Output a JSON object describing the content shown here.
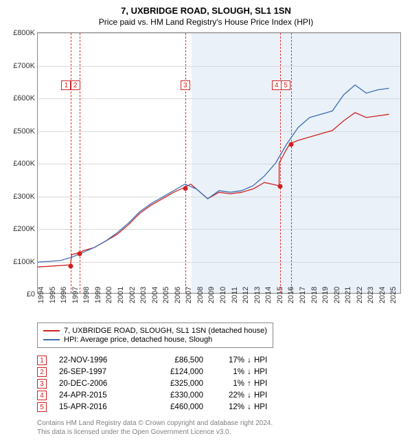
{
  "title": "7, UXBRIDGE ROAD, SLOUGH, SL1 1SN",
  "subtitle": "Price paid vs. HM Land Registry's House Price Index (HPI)",
  "chart": {
    "type": "line",
    "xlim": [
      1994,
      2026
    ],
    "ylim": [
      0,
      800000
    ],
    "ytick_step": 100000,
    "ytick_labels": [
      "£0",
      "£100K",
      "£200K",
      "£300K",
      "£400K",
      "£500K",
      "£600K",
      "£700K",
      "£800K"
    ],
    "xticks": [
      1994,
      1995,
      1996,
      1997,
      1998,
      1999,
      2000,
      2001,
      2002,
      2003,
      2004,
      2005,
      2006,
      2007,
      2008,
      2009,
      2010,
      2011,
      2012,
      2013,
      2014,
      2015,
      2016,
      2017,
      2018,
      2019,
      2020,
      2021,
      2022,
      2023,
      2024,
      2025
    ],
    "shade_region": {
      "from": 2007.5,
      "to": 2026,
      "color": "#eaf1f8"
    },
    "grid_color": "#d9d9d9",
    "background_color": "#ffffff",
    "series": [
      {
        "name": "price_paid",
        "label": "7, UXBRIDGE ROAD, SLOUGH, SL1 1SN (detached house)",
        "color": "#d02020",
        "line_width": 1.3,
        "points": [
          [
            1994,
            80000
          ],
          [
            1996.9,
            86500
          ],
          [
            1996.9,
            90000
          ],
          [
            1997.0,
            118000
          ],
          [
            1997.7,
            124000
          ],
          [
            1998,
            130000
          ],
          [
            1999,
            140000
          ],
          [
            2000,
            160000
          ],
          [
            2001,
            180000
          ],
          [
            2002,
            210000
          ],
          [
            2003,
            245000
          ],
          [
            2004,
            270000
          ],
          [
            2005,
            290000
          ],
          [
            2006,
            310000
          ],
          [
            2006.97,
            325000
          ],
          [
            2007.5,
            335000
          ],
          [
            2008,
            320000
          ],
          [
            2009,
            290000
          ],
          [
            2010,
            310000
          ],
          [
            2011,
            305000
          ],
          [
            2012,
            310000
          ],
          [
            2013,
            320000
          ],
          [
            2014,
            340000
          ],
          [
            2015.3,
            330000
          ],
          [
            2015.31,
            400000
          ],
          [
            2016.0,
            445000
          ],
          [
            2016.3,
            460000
          ],
          [
            2017,
            470000
          ],
          [
            2018,
            480000
          ],
          [
            2019,
            490000
          ],
          [
            2020,
            500000
          ],
          [
            2021,
            530000
          ],
          [
            2022,
            555000
          ],
          [
            2023,
            540000
          ],
          [
            2024,
            545000
          ],
          [
            2025,
            550000
          ]
        ]
      },
      {
        "name": "hpi",
        "label": "HPI: Average price, detached house, Slough",
        "color": "#3b6db5",
        "line_width": 1.3,
        "points": [
          [
            1994,
            95000
          ],
          [
            1995,
            97000
          ],
          [
            1996,
            100000
          ],
          [
            1997,
            110000
          ],
          [
            1998,
            125000
          ],
          [
            1999,
            140000
          ],
          [
            2000,
            160000
          ],
          [
            2001,
            185000
          ],
          [
            2002,
            215000
          ],
          [
            2003,
            250000
          ],
          [
            2004,
            275000
          ],
          [
            2005,
            295000
          ],
          [
            2006,
            315000
          ],
          [
            2007,
            335000
          ],
          [
            2008,
            320000
          ],
          [
            2009,
            290000
          ],
          [
            2010,
            315000
          ],
          [
            2011,
            310000
          ],
          [
            2012,
            315000
          ],
          [
            2013,
            330000
          ],
          [
            2014,
            360000
          ],
          [
            2015,
            400000
          ],
          [
            2016,
            460000
          ],
          [
            2017,
            510000
          ],
          [
            2018,
            540000
          ],
          [
            2019,
            550000
          ],
          [
            2020,
            560000
          ],
          [
            2021,
            610000
          ],
          [
            2022,
            640000
          ],
          [
            2023,
            615000
          ],
          [
            2024,
            625000
          ],
          [
            2025,
            630000
          ]
        ]
      }
    ],
    "markers": [
      {
        "n": "1",
        "x": 1996.5,
        "y_label": 640000,
        "sale": {
          "x": 1996.9,
          "y": 86500
        }
      },
      {
        "n": "2",
        "x": 1997.3,
        "y_label": 640000,
        "sale": {
          "x": 1997.7,
          "y": 124000
        }
      },
      {
        "n": "3",
        "x": 2006.97,
        "y_label": 640000,
        "sale": {
          "x": 2006.97,
          "y": 325000
        }
      },
      {
        "n": "4",
        "x": 2015.0,
        "y_label": 640000,
        "sale": {
          "x": 2015.3,
          "y": 330000
        }
      },
      {
        "n": "5",
        "x": 2015.8,
        "y_label": 640000,
        "sale": {
          "x": 2016.3,
          "y": 460000
        }
      }
    ]
  },
  "legend": {
    "items": [
      {
        "color": "#d02020",
        "label": "7, UXBRIDGE ROAD, SLOUGH, SL1 1SN (detached house)"
      },
      {
        "color": "#3b6db5",
        "label": "HPI: Average price, detached house, Slough"
      }
    ]
  },
  "events": [
    {
      "n": "1",
      "date": "22-NOV-1996",
      "price": "£86,500",
      "pct": "17%",
      "arrow": "↓",
      "suffix": "HPI"
    },
    {
      "n": "2",
      "date": "26-SEP-1997",
      "price": "£124,000",
      "pct": "1%",
      "arrow": "↓",
      "suffix": "HPI"
    },
    {
      "n": "3",
      "date": "20-DEC-2006",
      "price": "£325,000",
      "pct": "1%",
      "arrow": "↑",
      "suffix": "HPI"
    },
    {
      "n": "4",
      "date": "24-APR-2015",
      "price": "£330,000",
      "pct": "22%",
      "arrow": "↓",
      "suffix": "HPI"
    },
    {
      "n": "5",
      "date": "15-APR-2016",
      "price": "£460,000",
      "pct": "12%",
      "arrow": "↓",
      "suffix": "HPI"
    }
  ],
  "attribution": {
    "line1": "Contains HM Land Registry data © Crown copyright and database right 2024.",
    "line2": "This data is licensed under the Open Government Licence v3.0."
  }
}
